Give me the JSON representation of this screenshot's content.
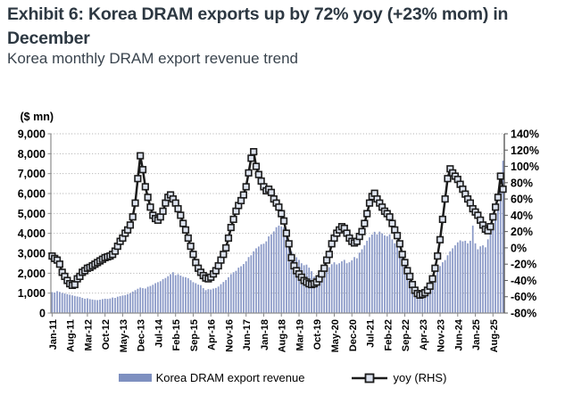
{
  "header": {
    "title": "Exhibit 6: Korea DRAM exports up by 72% yoy (+23% mom) in December",
    "subtitle": "Korea monthly DRAM export revenue trend"
  },
  "legend": {
    "revenue_label": "Korea DRAM export revenue",
    "yoy_label": "yoy (RHS)"
  },
  "colors": {
    "bar": "#8a99c7",
    "legend_swatch": "#7e90c0",
    "line": "#1b1b1b",
    "marker_fill": "#dde3ef",
    "grid": "#ababab",
    "axis": "#8c8c8c",
    "right_axis": "#5a5a5a",
    "text": "#000000",
    "title": "#2d3842"
  },
  "chart_data": {
    "type": "bar+line",
    "title": "Korea monthly DRAM export revenue trend",
    "unit_label": "($ mn)",
    "grid": "horizontal-dotted",
    "legend_position": "bottom",
    "x_start": "Jan-11",
    "x_end": "Dec-25",
    "x_tick_every_n_months": 7,
    "x_tick_labels": [
      "Jan-11",
      "Aug-11",
      "Mar-12",
      "Oct-12",
      "May-13",
      "Dec-13",
      "Jul-14",
      "Feb-15",
      "Sep-15",
      "Apr-16",
      "Nov-16",
      "Jun-17",
      "Jan-18",
      "Aug-18",
      "Mar-19",
      "Oct-19",
      "May-20",
      "Dec-20",
      "Jul-21",
      "Feb-22",
      "Sep-22",
      "Apr-23",
      "Nov-23",
      "Jun-24",
      "Jan-25",
      "Aug-25"
    ],
    "left_axis": {
      "min": 0,
      "max": 9000,
      "step": 1000,
      "tick_labels": [
        "0",
        "1,000",
        "2,000",
        "3,000",
        "4,000",
        "5,000",
        "6,000",
        "7,000",
        "8,000",
        "9,000"
      ]
    },
    "right_axis": {
      "min": -80,
      "max": 140,
      "step": 20,
      "tick_labels": [
        "-80%",
        "-60%",
        "-40%",
        "-20%",
        "0%",
        "20%",
        "40%",
        "60%",
        "80%",
        "100%",
        "120%",
        "140%"
      ]
    },
    "series": [
      {
        "name": "Korea DRAM export revenue",
        "type": "bar",
        "axis": "left",
        "values": [
          1050,
          1030,
          1100,
          1060,
          1010,
          980,
          950,
          920,
          890,
          860,
          830,
          810,
          760,
          720,
          740,
          700,
          680,
          660,
          650,
          670,
          700,
          720,
          710,
          730,
          780,
          760,
          820,
          850,
          880,
          900,
          950,
          1000,
          1080,
          1150,
          1220,
          1280,
          1250,
          1230,
          1320,
          1360,
          1420,
          1500,
          1550,
          1600,
          1700,
          1760,
          1850,
          1950,
          2050,
          1900,
          1950,
          1880,
          1820,
          1800,
          1750,
          1650,
          1550,
          1500,
          1430,
          1400,
          1250,
          1150,
          1200,
          1180,
          1230,
          1260,
          1330,
          1450,
          1560,
          1660,
          1800,
          1950,
          2050,
          2120,
          2280,
          2350,
          2460,
          2600,
          2810,
          2900,
          3100,
          3250,
          3340,
          3450,
          3480,
          3600,
          3850,
          3950,
          4100,
          4310,
          4390,
          4350,
          4300,
          4010,
          3600,
          3100,
          2960,
          2800,
          2670,
          2500,
          2400,
          2430,
          2280,
          2100,
          1830,
          1620,
          1700,
          1900,
          2000,
          2100,
          2300,
          2450,
          2550,
          2440,
          2500,
          2600,
          2670,
          2500,
          2550,
          2650,
          2810,
          2750,
          3030,
          3200,
          3400,
          3630,
          3800,
          3940,
          4080,
          3950,
          4090,
          4000,
          3900,
          3860,
          3950,
          3700,
          3500,
          3410,
          3100,
          2810,
          2400,
          2100,
          1910,
          1600,
          1400,
          1150,
          1100,
          1000,
          1050,
          1100,
          1250,
          1600,
          1900,
          2210,
          2360,
          2550,
          2660,
          2900,
          3100,
          3250,
          3400,
          3550,
          3650,
          3600,
          3630,
          3500,
          3630,
          4390,
          3500,
          3200,
          3350,
          3400,
          3300,
          3700,
          4000,
          4300,
          4800,
          5210,
          6200,
          7650
        ]
      },
      {
        "name": "yoy (RHS)",
        "type": "line",
        "axis": "right",
        "values": [
          -10,
          -13,
          -15,
          -20,
          -30,
          -35,
          -40,
          -44,
          -46,
          -45,
          -38,
          -35,
          -30,
          -28,
          -25,
          -24,
          -22,
          -20,
          -18,
          -16,
          -14,
          -12,
          -11,
          -10,
          -8,
          -4,
          2,
          8,
          12,
          18,
          22,
          28,
          38,
          55,
          85,
          113,
          96,
          75,
          62,
          50,
          40,
          36,
          34,
          38,
          45,
          55,
          62,
          65,
          60,
          55,
          48,
          40,
          30,
          22,
          12,
          2,
          -8,
          -18,
          -25,
          -30,
          -34,
          -37,
          -38,
          -36,
          -32,
          -28,
          -22,
          -15,
          -8,
          0,
          12,
          25,
          35,
          45,
          52,
          58,
          65,
          75,
          92,
          110,
          118,
          100,
          90,
          82,
          75,
          70,
          72,
          68,
          60,
          55,
          50,
          42,
          33,
          18,
          5,
          -12,
          -22,
          -28,
          -32,
          -36,
          -40,
          -42,
          -44,
          -45,
          -44,
          -42,
          -38,
          -32,
          -25,
          -15,
          -8,
          5,
          12,
          18,
          22,
          26,
          24,
          18,
          12,
          8,
          6,
          8,
          14,
          20,
          30,
          42,
          55,
          63,
          67,
          60,
          55,
          50,
          45,
          42,
          38,
          30,
          22,
          15,
          5,
          -8,
          -18,
          -28,
          -35,
          -45,
          -52,
          -56,
          -58,
          -57,
          -55,
          -52,
          -47,
          -38,
          -25,
          -10,
          10,
          35,
          60,
          85,
          97,
          92,
          88,
          84,
          78,
          72,
          66,
          60,
          55,
          48,
          44,
          40,
          34,
          28,
          23,
          21,
          26,
          38,
          50,
          62,
          88,
          72
        ]
      }
    ]
  }
}
